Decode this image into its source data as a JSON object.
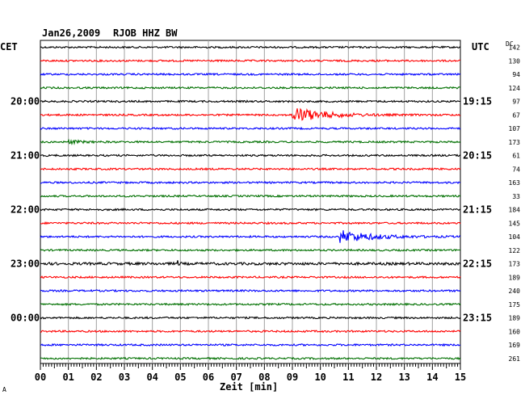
{
  "header": {
    "date": "Jan26,2009",
    "station": "RJOB HHZ BW"
  },
  "labels": {
    "left_tz": "CET",
    "right_tz": "UTC",
    "dc": "DC",
    "xlabel": "Zeit [min]",
    "corner_mark": "A"
  },
  "chart_data": {
    "type": "line",
    "title": "Jan26,2009   RJOB HHZ BW",
    "xlabel": "Zeit [min]",
    "x_range": [
      0,
      15
    ],
    "x_ticks": [
      "00",
      "01",
      "02",
      "03",
      "04",
      "05",
      "06",
      "07",
      "08",
      "09",
      "10",
      "11",
      "12",
      "13",
      "14",
      "15"
    ],
    "grid": true,
    "colors_cycle": [
      "#000000",
      "#ff0000",
      "#0000ff",
      "#007000"
    ],
    "left_time_labels": [
      {
        "row": 4,
        "text": "20:00"
      },
      {
        "row": 8,
        "text": "21:00"
      },
      {
        "row": 12,
        "text": "22:00"
      },
      {
        "row": 16,
        "text": "23:00"
      },
      {
        "row": 20,
        "text": "00:00"
      }
    ],
    "right_time_labels": [
      {
        "row": 4,
        "text": "19:15"
      },
      {
        "row": 8,
        "text": "20:15"
      },
      {
        "row": 12,
        "text": "21:15"
      },
      {
        "row": 16,
        "text": "22:15"
      },
      {
        "row": 20,
        "text": "23:15"
      }
    ],
    "dc_offsets": [
      "142",
      "130",
      "94",
      "124",
      "97",
      "67",
      "107",
      "173",
      "61",
      "74",
      "163",
      "33",
      "184",
      "145",
      "104",
      "122",
      "173",
      "189",
      "240",
      "175",
      "189",
      "160",
      "169",
      "261"
    ],
    "events": [
      {
        "row": 5,
        "minute": 9.0,
        "amplitude": 10,
        "decay_min": 3.5
      },
      {
        "row": 14,
        "minute": 10.7,
        "amplitude": 8,
        "decay_min": 3.5
      },
      {
        "row": 7,
        "minute": 1.0,
        "amplitude": 2,
        "decay_min": 1.5
      },
      {
        "row": 16,
        "minute": 4.9,
        "amplitude": 3,
        "decay_min": 0.2
      }
    ]
  }
}
